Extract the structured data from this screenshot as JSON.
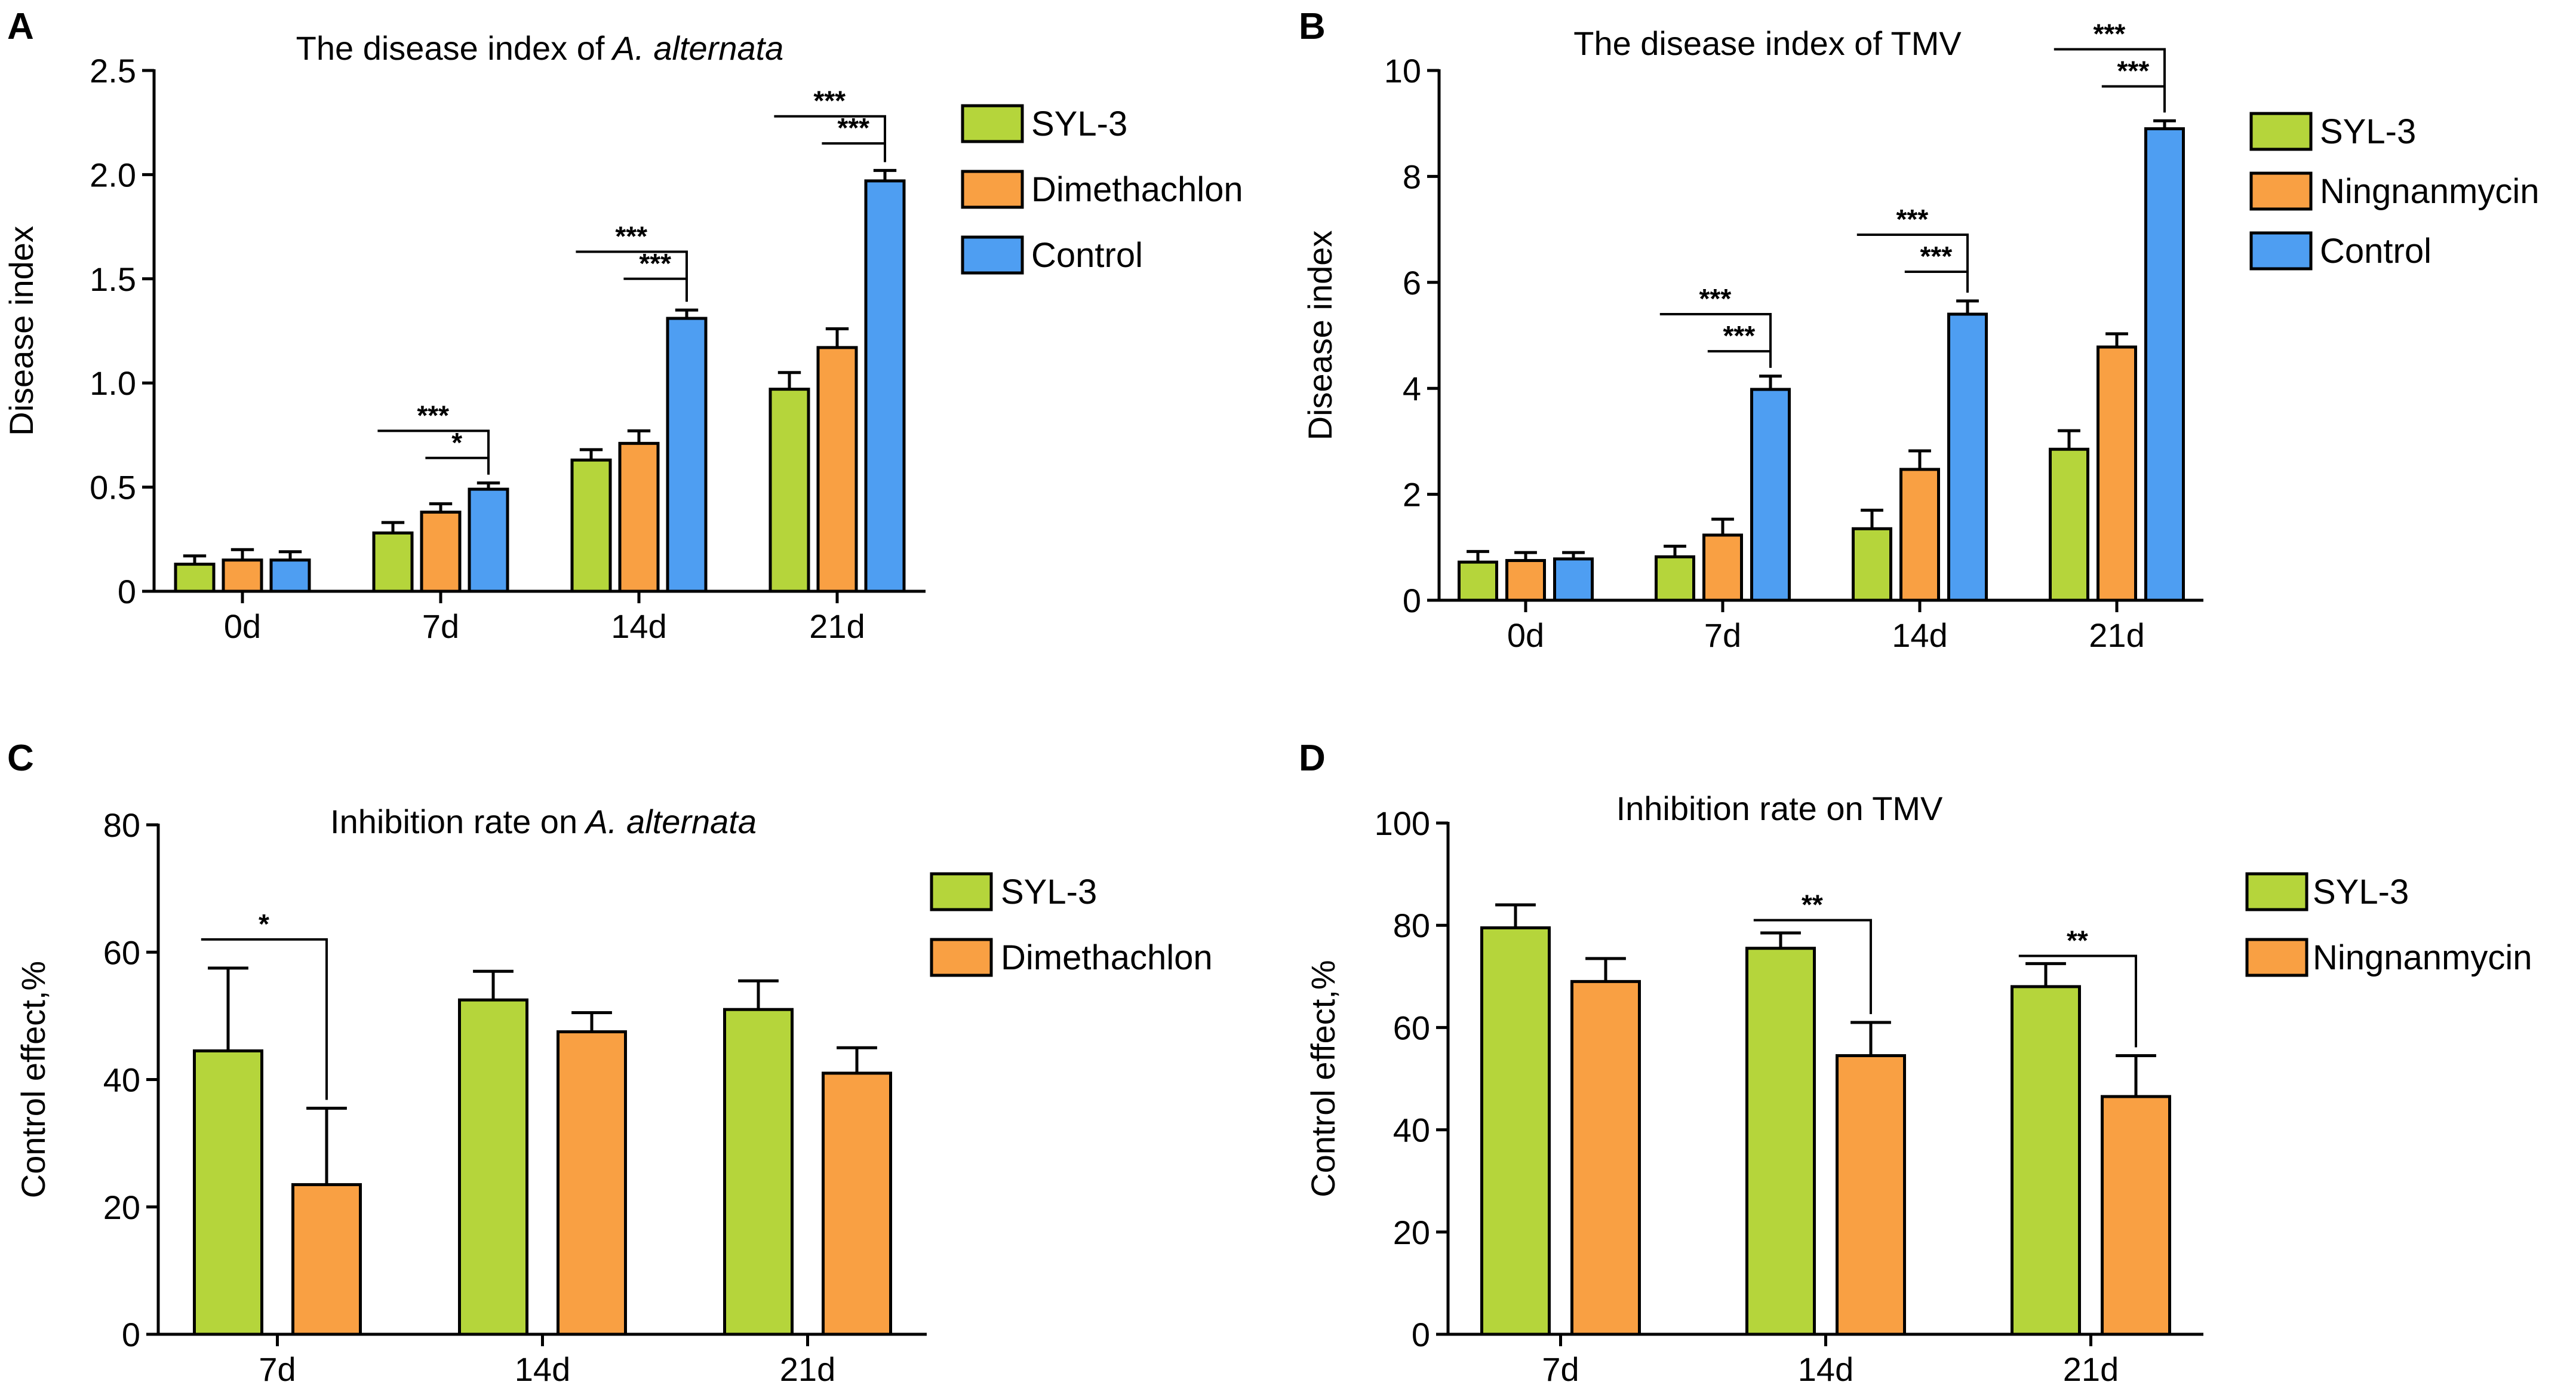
{
  "colors": {
    "SYL-3": "#b5d53b",
    "Dimethachlon": "#f9a043",
    "Ningnanmycin": "#f9a043",
    "Control": "#4e9ef2",
    "axis": "#000000"
  },
  "chart_data": [
    {
      "panel": "A",
      "type": "bar",
      "title": "The disease index of",
      "title_italic": "A. alternata",
      "ylabel": "Disease index",
      "xlabel": "",
      "ylim": [
        0,
        2.5
      ],
      "yticks": [
        0,
        0.5,
        1.0,
        1.5,
        2.0,
        2.5
      ],
      "ytick_labels": [
        "0",
        "0.5",
        "1.0",
        "1.5",
        "2.0",
        "2.5"
      ],
      "categories": [
        "0d",
        "7d",
        "14d",
        "21d"
      ],
      "series": [
        {
          "name": "SYL-3",
          "values": [
            0.13,
            0.28,
            0.63,
            0.97
          ],
          "errors": [
            0.04,
            0.05,
            0.05,
            0.08
          ]
        },
        {
          "name": "Dimethachlon",
          "values": [
            0.15,
            0.38,
            0.71,
            1.17
          ],
          "errors": [
            0.05,
            0.04,
            0.06,
            0.09
          ]
        },
        {
          "name": "Control",
          "values": [
            0.15,
            0.49,
            1.31,
            1.97
          ],
          "errors": [
            0.04,
            0.03,
            0.04,
            0.05
          ]
        }
      ],
      "legend": [
        "SYL-3",
        "Dimethachlon",
        "Control"
      ],
      "significance": [
        {
          "category": 1,
          "from": 0,
          "to": 2,
          "label": "***",
          "y": 0.77
        },
        {
          "category": 1,
          "from": 1,
          "to": 2,
          "label": "*",
          "y": 0.64
        },
        {
          "category": 2,
          "from": 0,
          "to": 2,
          "label": "***",
          "y": 1.63
        },
        {
          "category": 2,
          "from": 1,
          "to": 2,
          "label": "***",
          "y": 1.5
        },
        {
          "category": 3,
          "from": 0,
          "to": 2,
          "label": "***",
          "y": 2.28
        },
        {
          "category": 3,
          "from": 1,
          "to": 2,
          "label": "***",
          "y": 2.15
        }
      ]
    },
    {
      "panel": "B",
      "type": "bar",
      "title": "The disease index of TMV",
      "title_italic": "",
      "ylabel": "Disease index",
      "xlabel": "",
      "ylim": [
        0,
        10
      ],
      "yticks": [
        0,
        2,
        4,
        6,
        8,
        10
      ],
      "ytick_labels": [
        "0",
        "2",
        "4",
        "6",
        "8",
        "10"
      ],
      "categories": [
        "0d",
        "7d",
        "14d",
        "21d"
      ],
      "series": [
        {
          "name": "SYL-3",
          "values": [
            0.72,
            0.82,
            1.35,
            2.85
          ],
          "errors": [
            0.2,
            0.2,
            0.35,
            0.35
          ]
        },
        {
          "name": "Ningnanmycin",
          "values": [
            0.75,
            1.23,
            2.47,
            4.78
          ],
          "errors": [
            0.15,
            0.3,
            0.35,
            0.25
          ]
        },
        {
          "name": "Control",
          "values": [
            0.78,
            3.98,
            5.4,
            8.9
          ],
          "errors": [
            0.12,
            0.25,
            0.25,
            0.15
          ]
        }
      ],
      "legend": [
        "SYL-3",
        "Ningnanmycin",
        "Control"
      ],
      "significance": [
        {
          "category": 1,
          "from": 0,
          "to": 2,
          "label": "***",
          "y": 5.4
        },
        {
          "category": 1,
          "from": 1,
          "to": 2,
          "label": "***",
          "y": 4.7
        },
        {
          "category": 2,
          "from": 0,
          "to": 2,
          "label": "***",
          "y": 6.9
        },
        {
          "category": 2,
          "from": 1,
          "to": 2,
          "label": "***",
          "y": 6.2
        },
        {
          "category": 3,
          "from": 0,
          "to": 2,
          "label": "***",
          "y": 10.4
        },
        {
          "category": 3,
          "from": 1,
          "to": 2,
          "label": "***",
          "y": 9.7
        }
      ]
    },
    {
      "panel": "C",
      "type": "bar",
      "title": "Inhibition rate on",
      "title_italic": "A. alternata",
      "ylabel": "Control effect,%",
      "xlabel": "",
      "ylim": [
        0,
        80
      ],
      "yticks": [
        0,
        20,
        40,
        60,
        80
      ],
      "ytick_labels": [
        "0",
        "20",
        "40",
        "60",
        "80"
      ],
      "categories": [
        "7d",
        "14d",
        "21d"
      ],
      "series": [
        {
          "name": "SYL-3",
          "values": [
            44.5,
            52.5,
            51.0
          ],
          "errors": [
            13.0,
            4.5,
            4.5
          ]
        },
        {
          "name": "Dimethachlon",
          "values": [
            23.5,
            47.5,
            41.0
          ],
          "errors": [
            12.0,
            3.0,
            4.0
          ]
        }
      ],
      "legend": [
        "SYL-3",
        "Dimethachlon"
      ],
      "significance": [
        {
          "category": 0,
          "from": 0,
          "to": 1,
          "label": "*",
          "y": 62
        }
      ]
    },
    {
      "panel": "D",
      "type": "bar",
      "title": "Inhibition rate on TMV",
      "title_italic": "",
      "ylabel": "Control effect,%",
      "xlabel": "",
      "ylim": [
        0,
        100
      ],
      "yticks": [
        0,
        20,
        40,
        60,
        80,
        100
      ],
      "ytick_labels": [
        "0",
        "20",
        "40",
        "60",
        "80",
        "100"
      ],
      "categories": [
        "7d",
        "14d",
        "21d"
      ],
      "series": [
        {
          "name": "SYL-3",
          "values": [
            79.5,
            75.5,
            68.0
          ],
          "errors": [
            4.5,
            3.0,
            4.5
          ]
        },
        {
          "name": "Ningnanmycin",
          "values": [
            69.0,
            54.5,
            46.5
          ],
          "errors": [
            4.5,
            6.5,
            8.0
          ]
        }
      ],
      "legend": [
        "SYL-3",
        "Ningnanmycin"
      ],
      "significance": [
        {
          "category": 1,
          "from": 0,
          "to": 1,
          "label": "**",
          "y": 81
        },
        {
          "category": 2,
          "from": 0,
          "to": 1,
          "label": "**",
          "y": 74
        }
      ]
    }
  ]
}
